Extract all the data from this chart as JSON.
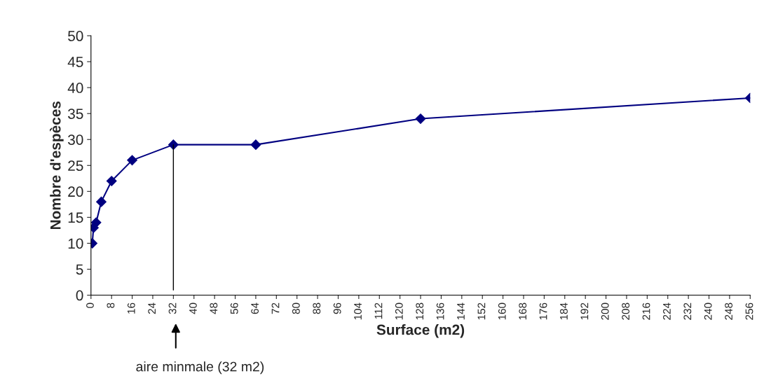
{
  "chart_data": {
    "type": "line",
    "xlabel": "Surface (m2)",
    "ylabel": "Nombre d'espèces",
    "x": [
      0.5,
      1,
      2,
      4,
      8,
      16,
      32,
      64,
      128,
      256
    ],
    "series": [
      {
        "color": "#000080",
        "values": [
          10,
          13,
          14,
          18,
          22,
          26,
          29,
          29,
          34,
          38
        ]
      },
      {
        "color": "#000000",
        "x": [
          32,
          32
        ],
        "values": [
          29,
          1
        ],
        "marker": "none"
      }
    ],
    "xlim": [
      0,
      256
    ],
    "xticks": [
      0,
      8,
      16,
      24,
      32,
      40,
      48,
      56,
      64,
      72,
      80,
      88,
      96,
      104,
      112,
      120,
      128,
      136,
      144,
      152,
      160,
      168,
      176,
      184,
      192,
      200,
      208,
      216,
      224,
      232,
      240,
      248,
      256
    ],
    "ylim": [
      0,
      50
    ],
    "yticks": [
      0,
      5,
      10,
      15,
      20,
      25,
      30,
      35,
      40,
      45,
      50
    ],
    "marker": "diamond",
    "line_style": "solid",
    "grid": false,
    "legend": false,
    "annotations": [
      "aire minmale (32 m2)"
    ]
  }
}
